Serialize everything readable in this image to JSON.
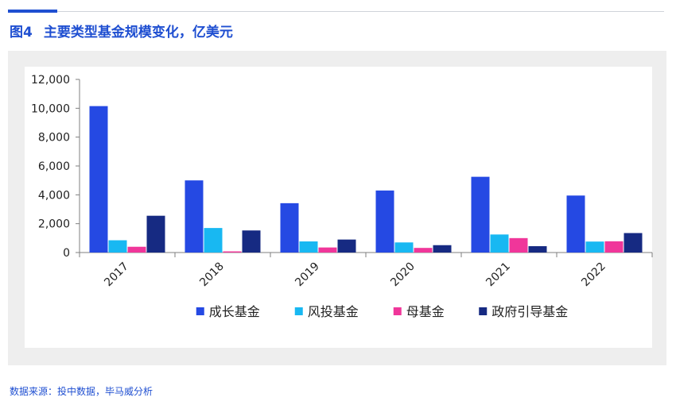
{
  "figure": {
    "number": "图4",
    "title": "主要类型基金规模变化，亿美元"
  },
  "source": "数据来源：投中数据，毕马威分析",
  "chart_data": {
    "type": "bar",
    "title": "主要类型基金规模变化，亿美元",
    "xlabel": "",
    "ylabel": "",
    "categories": [
      "2017",
      "2018",
      "2019",
      "2020",
      "2021",
      "2022"
    ],
    "ylim": [
      0,
      12000
    ],
    "yticks": [
      0,
      2000,
      4000,
      6000,
      8000,
      10000,
      12000
    ],
    "ytick_labels": [
      "0",
      "2,000",
      "4,000",
      "6,000",
      "8,000",
      "10,000",
      "12,000"
    ],
    "grid": false,
    "legend_position": "bottom",
    "series": [
      {
        "name": "成长基金",
        "color": "#2549e3",
        "values": [
          10150,
          5000,
          3420,
          4300,
          5250,
          3950
        ]
      },
      {
        "name": "风投基金",
        "color": "#18b8f2",
        "values": [
          850,
          1700,
          770,
          700,
          1250,
          760
        ]
      },
      {
        "name": "母基金",
        "color": "#f0369a",
        "values": [
          400,
          80,
          350,
          320,
          1000,
          780
        ]
      },
      {
        "name": "政府引导基金",
        "color": "#162a82",
        "values": [
          2550,
          1530,
          900,
          510,
          440,
          1350
        ]
      }
    ]
  }
}
